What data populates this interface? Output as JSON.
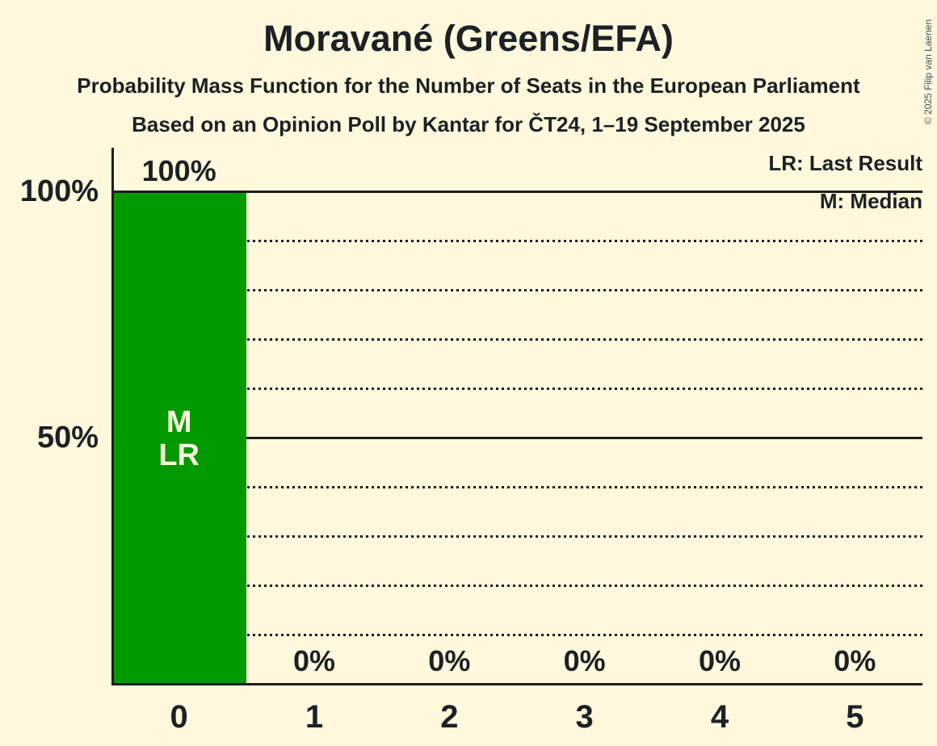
{
  "header": {
    "title": "Moravané (Greens/EFA)",
    "subtitle1": "Probability Mass Function for the Number of Seats in the European Parliament",
    "subtitle2": "Based on an Opinion Poll by Kantar for ČT24, 1–19 September 2025"
  },
  "legend": {
    "lr": "LR: Last Result",
    "m": "M: Median"
  },
  "copyright": "© 2025 Filip van Laenen",
  "colors": {
    "background": "#FFF8DC",
    "bar": "#009900",
    "text": "#1C2126",
    "line": "#1C1C1C",
    "bar_annotation_text": "#FCF8DC",
    "copyright_text": "#4A5054"
  },
  "chart_data": {
    "type": "bar",
    "title": "Moravané (Greens/EFA)",
    "subtitle": "Probability Mass Function for the Number of Seats in the European Parliament",
    "source": "Based on an Opinion Poll by Kantar for ČT24, 1–19 September 2025",
    "categories": [
      "0",
      "1",
      "2",
      "3",
      "4",
      "5"
    ],
    "values": [
      100,
      0,
      0,
      0,
      0,
      0
    ],
    "value_labels": [
      "100%",
      "0%",
      "0%",
      "0%",
      "0%",
      "0%"
    ],
    "ylim": [
      0,
      100
    ],
    "y_ticks": [
      {
        "label": "100%",
        "value": 100
      },
      {
        "label": "50%",
        "value": 50
      }
    ],
    "gridlines": {
      "dotted_percents": [
        10,
        20,
        30,
        40,
        60,
        70,
        80,
        90
      ],
      "solid_percents": [
        50,
        100
      ]
    },
    "annotations": [
      {
        "category": "0",
        "lines": [
          "M",
          "LR"
        ]
      }
    ],
    "legend_position": "top-right",
    "grid": true
  }
}
